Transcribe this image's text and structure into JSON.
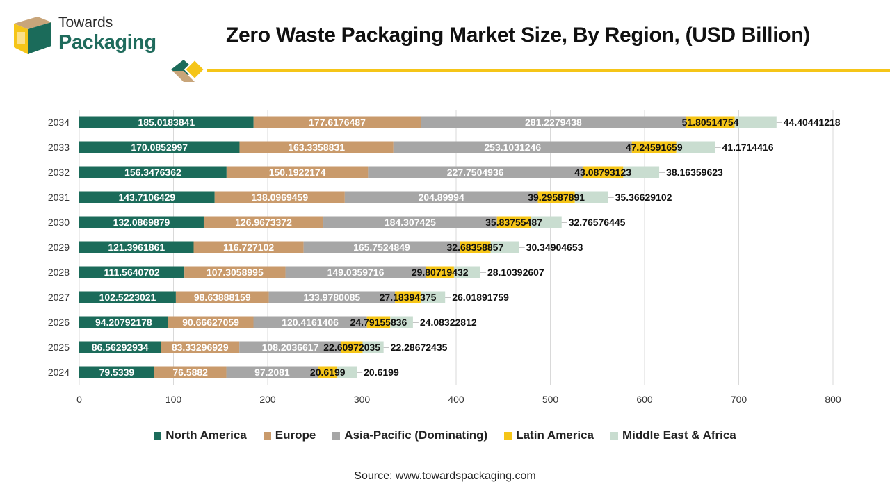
{
  "brand": {
    "line1": "Towards",
    "line2": "Packaging"
  },
  "title": "Zero Waste Packaging Market Size, By Region, (USD Billion)",
  "source": "Source: www.towardspackaging.com",
  "colors": {
    "north_america": "#1b6b5a",
    "europe": "#c99a6b",
    "asia_pacific": "#a6a6a6",
    "latin_america": "#f5c518",
    "mea": "#c9ddd0",
    "accent_yellow": "#f5c518",
    "accent_green": "#1b6b5a",
    "accent_tan": "#c8a57a"
  },
  "legend": [
    {
      "label": "North America",
      "color": "#1b6b5a"
    },
    {
      "label": "Europe",
      "color": "#c99a6b"
    },
    {
      "label": "Asia-Pacific (Dominating)",
      "color": "#a6a6a6"
    },
    {
      "label": "Latin America",
      "color": "#f5c518"
    },
    {
      "label": "Middle East & Africa",
      "color": "#c9ddd0"
    }
  ],
  "chart_data": {
    "type": "bar",
    "orientation": "horizontal",
    "stacked": true,
    "title": "Zero Waste Packaging Market Size, By Region, (USD Billion)",
    "categories": [
      "2034",
      "2033",
      "2032",
      "2031",
      "2030",
      "2029",
      "2028",
      "2027",
      "2026",
      "2025",
      "2024"
    ],
    "xlim": [
      0,
      800
    ],
    "xticks": [
      "0",
      "100",
      "200",
      "300",
      "400",
      "500",
      "600",
      "700",
      "800"
    ],
    "grid": true,
    "legend_position": "bottom",
    "series": [
      {
        "name": "North America",
        "color": "#1b6b5a",
        "label_color": "#ffffff",
        "values": [
          185.0183841,
          170.0852997,
          156.3476362,
          143.7106429,
          132.0869879,
          121.3961861,
          111.5640702,
          102.5223021,
          94.20792178,
          86.56292934,
          79.5339
        ],
        "labels": [
          "185.0183841",
          "170.0852997",
          "156.3476362",
          "143.7106429",
          "132.0869879",
          "121.3961861",
          "111.5640702",
          "102.5223021",
          "94.20792178",
          "86.56292934",
          "79.5339"
        ]
      },
      {
        "name": "Europe",
        "color": "#c99a6b",
        "label_color": "#ffffff",
        "values": [
          177.6176487,
          163.3358831,
          150.1922174,
          138.0969459,
          126.9673372,
          116.727102,
          107.3058995,
          98.63888159,
          90.66627059,
          83.33296929,
          76.5882
        ],
        "labels": [
          "177.6176487",
          "163.3358831",
          "150.1922174",
          "138.0969459",
          "126.9673372",
          "116.727102",
          "107.3058995",
          "98.63888159",
          "90.66627059",
          "83.33296929",
          "76.5882"
        ]
      },
      {
        "name": "Asia-Pacific (Dominating)",
        "color": "#a6a6a6",
        "label_color": "#ffffff",
        "values": [
          281.2279438,
          253.1031246,
          227.7504936,
          204.89994,
          184.307425,
          165.7524849,
          149.0359716,
          133.9780085,
          120.4161406,
          108.2036617,
          97.2081
        ],
        "labels": [
          "281.2279438",
          "253.1031246",
          "227.7504936",
          "204.89994",
          "184.307425",
          "165.7524849",
          "149.0359716",
          "133.9780085",
          "120.4161406",
          "108.2036617",
          "97.2081"
        ]
      },
      {
        "name": "Latin America",
        "color": "#f5c518",
        "label_color": "#111111",
        "values": [
          51.80514754,
          47.24591659,
          43.08793123,
          39.29587891,
          35.83755487,
          32.68358857,
          29.80719432,
          27.18394375,
          24.79155836,
          22.60972035,
          20.6199
        ],
        "labels": [
          "51.80514754",
          "47.24591659",
          "43.08793123",
          "39.29587891",
          "35.83755487",
          "32.68358857",
          "29.80719432",
          "27.18394375",
          "24.79155836",
          "22.60972035",
          "20.6199"
        ]
      },
      {
        "name": "Middle East & Africa",
        "color": "#c9ddd0",
        "label_color": "#111111",
        "values": [
          44.40441218,
          41.1714416,
          38.16359623,
          35.36629102,
          32.76576445,
          30.34904653,
          28.10392607,
          26.01891759,
          24.08322812,
          22.28672435,
          20.6199
        ],
        "labels": [
          "44.40441218",
          "41.1714416",
          "38.16359623",
          "35.36629102",
          "32.76576445",
          "30.34904653",
          "28.10392607",
          "26.01891759",
          "24.08322812",
          "22.28672435",
          "20.6199"
        ]
      }
    ]
  }
}
